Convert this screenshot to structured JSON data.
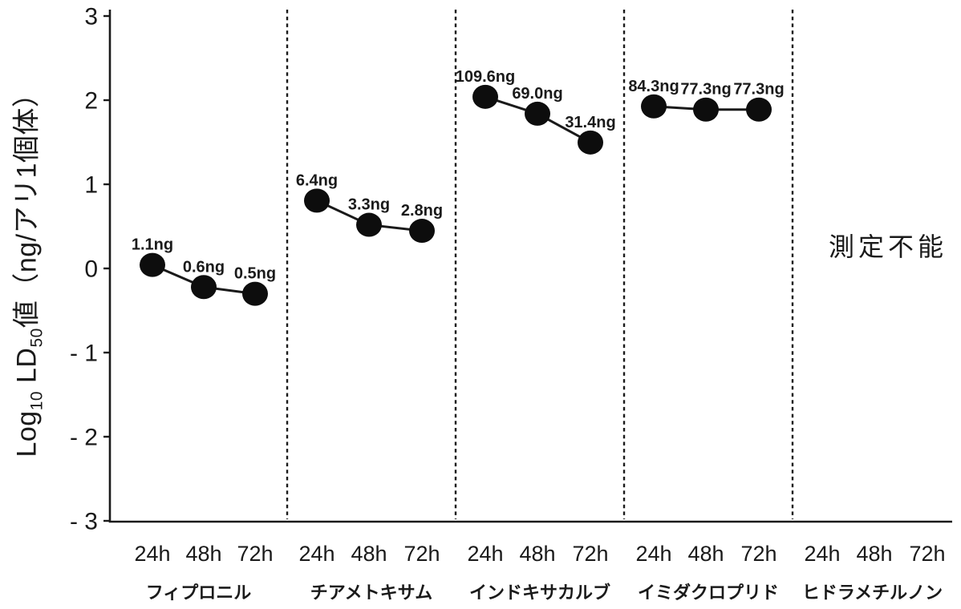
{
  "page": {
    "background": "#ffffff",
    "ink": "#1a1a1a",
    "point_color": "#0d0d0d"
  },
  "chart_data": {
    "type": "line",
    "title": "",
    "ylabel": "Log10 LD50値（ng/アリ1個体）",
    "ylabel_parts": [
      {
        "text": "Log",
        "sub": false
      },
      {
        "text": "10",
        "sub": true
      },
      {
        "text": " LD",
        "sub": false
      },
      {
        "text": "50",
        "sub": true
      },
      {
        "text": "値（ng/アリ1個体）",
        "sub": false
      }
    ],
    "ylim": [
      -3,
      3
    ],
    "yticks": [
      {
        "value": 3,
        "label": "3"
      },
      {
        "value": 2,
        "label": "2"
      },
      {
        "value": 1,
        "label": "1"
      },
      {
        "value": 0,
        "label": "0"
      },
      {
        "value": -1,
        "label": "- 1"
      },
      {
        "value": -2,
        "label": "- 2"
      },
      {
        "value": -3,
        "label": "- 3"
      }
    ],
    "timepoints": [
      "24h",
      "48h",
      "72h"
    ],
    "grid": false,
    "legend": "none",
    "groups": [
      {
        "name": "フィプロニル",
        "values_ng": [
          1.1,
          0.6,
          0.5
        ],
        "point_labels": [
          "1.1ng",
          "0.6ng",
          "0.5ng"
        ],
        "annotation": ""
      },
      {
        "name": "チアメトキサム",
        "values_ng": [
          6.4,
          3.3,
          2.8
        ],
        "point_labels": [
          "6.4ng",
          "3.3ng",
          "2.8ng"
        ],
        "annotation": ""
      },
      {
        "name": "インドキサカルブ",
        "values_ng": [
          109.6,
          69.0,
          31.4
        ],
        "point_labels": [
          "109.6ng",
          "69.0ng",
          "31.4ng"
        ],
        "annotation": ""
      },
      {
        "name": "イミダクロプリド",
        "values_ng": [
          84.3,
          77.3,
          77.3
        ],
        "point_labels": [
          "84.3ng",
          "77.3ng",
          "77.3ng"
        ],
        "annotation": ""
      },
      {
        "name": "ヒドラメチルノン",
        "values_ng": [],
        "point_labels": [],
        "annotation": "測定不能"
      }
    ]
  }
}
